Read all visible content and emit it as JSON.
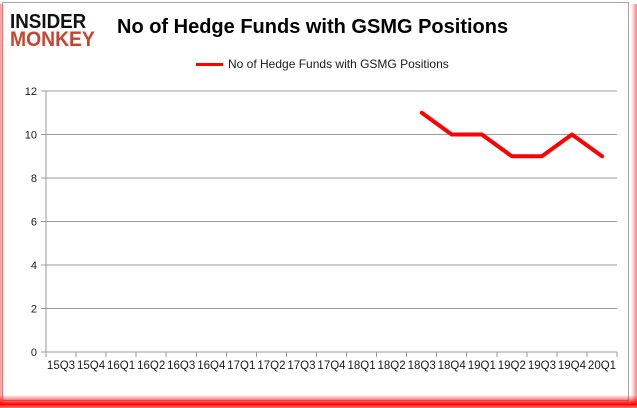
{
  "logo": {
    "line1": "INSIDER",
    "line2": "MONKEY"
  },
  "header": {
    "title": "No of Hedge Funds with GSMG Positions"
  },
  "legend": {
    "label": "No of Hedge Funds with GSMG Positions",
    "swatch_color": "#ff0000"
  },
  "chart_data": {
    "type": "line",
    "title": "No of Hedge Funds with GSMG Positions",
    "categories": [
      "15Q3",
      "15Q4",
      "16Q1",
      "16Q2",
      "16Q3",
      "16Q4",
      "17Q1",
      "17Q2",
      "17Q3",
      "17Q4",
      "18Q1",
      "18Q2",
      "18Q3",
      "18Q4",
      "19Q1",
      "19Q2",
      "19Q3",
      "19Q4",
      "20Q1"
    ],
    "series": [
      {
        "name": "No of Hedge Funds with GSMG Positions",
        "color": "#ff0000",
        "values": [
          null,
          null,
          null,
          null,
          null,
          null,
          null,
          null,
          null,
          null,
          null,
          null,
          11,
          10,
          10,
          9,
          9,
          10,
          9
        ]
      }
    ],
    "ylim": [
      0,
      12
    ],
    "yticks": [
      0,
      2,
      4,
      6,
      8,
      10,
      12
    ],
    "grid": true,
    "legend_position": "top-center",
    "line_width": 4
  },
  "colors": {
    "line": "#ff0000",
    "gridline": "#9b9b9b",
    "axis": "#9b9b9b",
    "tick_label": "#1a1a1a",
    "title_text": "#000000",
    "logo_black": "#111111",
    "logo_red": "#c9432f",
    "frame_border": "#a7a7a7",
    "border_glow": "#ff0000",
    "background": "#ffffff"
  }
}
